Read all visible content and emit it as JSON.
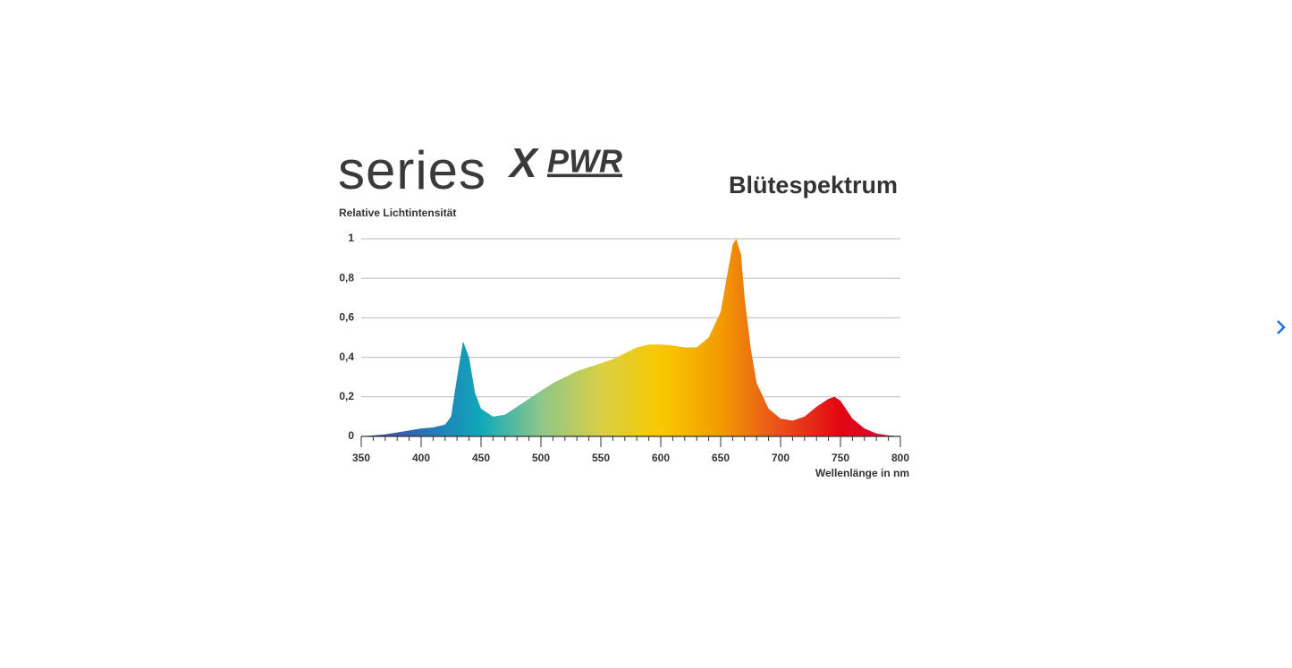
{
  "logo": {
    "word": "series",
    "mark": "X",
    "suffix": "PWR"
  },
  "chart_data": {
    "type": "area",
    "title": "Blütespektrum",
    "ylabel": "Relative Lichtintensität",
    "xlabel": "Wellenlänge in nm",
    "x": [
      350,
      360,
      370,
      380,
      390,
      400,
      410,
      420,
      425,
      430,
      435,
      440,
      445,
      450,
      460,
      470,
      480,
      490,
      500,
      510,
      520,
      530,
      540,
      550,
      560,
      570,
      580,
      590,
      600,
      610,
      620,
      630,
      640,
      650,
      655,
      660,
      663,
      667,
      670,
      675,
      680,
      690,
      700,
      710,
      720,
      730,
      740,
      745,
      750,
      760,
      770,
      780,
      790,
      800
    ],
    "values": [
      0,
      0.005,
      0.01,
      0.02,
      0.03,
      0.04,
      0.045,
      0.06,
      0.1,
      0.3,
      0.48,
      0.4,
      0.22,
      0.14,
      0.1,
      0.11,
      0.15,
      0.19,
      0.23,
      0.27,
      0.3,
      0.33,
      0.35,
      0.37,
      0.39,
      0.42,
      0.45,
      0.465,
      0.465,
      0.46,
      0.45,
      0.45,
      0.5,
      0.63,
      0.8,
      0.97,
      1.0,
      0.92,
      0.7,
      0.45,
      0.27,
      0.14,
      0.09,
      0.08,
      0.1,
      0.15,
      0.19,
      0.2,
      0.18,
      0.09,
      0.04,
      0.015,
      0.005,
      0
    ],
    "colors": [
      "#4b3a8c",
      "#2a6fb8",
      "#0fa9b9",
      "#8ec78a",
      "#d9cf45",
      "#f9c900",
      "#f29b00",
      "#e84e1b",
      "#e30613",
      "#d3123f"
    ],
    "xlim": [
      350,
      800
    ],
    "ylim": [
      0,
      1
    ],
    "xticks": [
      350,
      400,
      450,
      500,
      550,
      600,
      650,
      700,
      750,
      800
    ],
    "yticks": [
      0,
      {
        "value": 0.2,
        "label": "0,2"
      },
      {
        "value": 0.4,
        "label": "0,4"
      },
      {
        "value": 0.6,
        "label": "0,6"
      },
      {
        "value": 0.8,
        "label": "0,8"
      },
      1
    ],
    "grid": true
  }
}
